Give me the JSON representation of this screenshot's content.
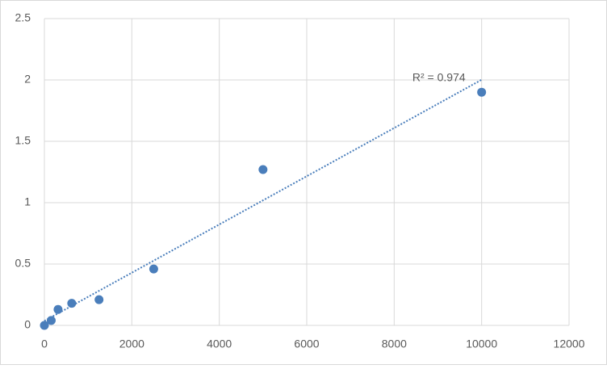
{
  "chart_data": {
    "type": "scatter",
    "x": [
      0,
      156.25,
      312.5,
      625,
      1250,
      2500,
      5000,
      10000
    ],
    "values": [
      0,
      0.04,
      0.13,
      0.18,
      0.21,
      0.46,
      1.27,
      1.9
    ],
    "color": "#4a7ebb",
    "xlim": [
      0,
      12000
    ],
    "xticks": [
      0,
      2000,
      4000,
      6000,
      8000,
      10000,
      12000
    ],
    "ylim": [
      0,
      2.5
    ],
    "yticks": [
      0,
      0.5,
      1,
      1.5,
      2,
      2.5
    ],
    "grid": true,
    "trendline": "linear",
    "annotation": "R² = 0.974"
  }
}
